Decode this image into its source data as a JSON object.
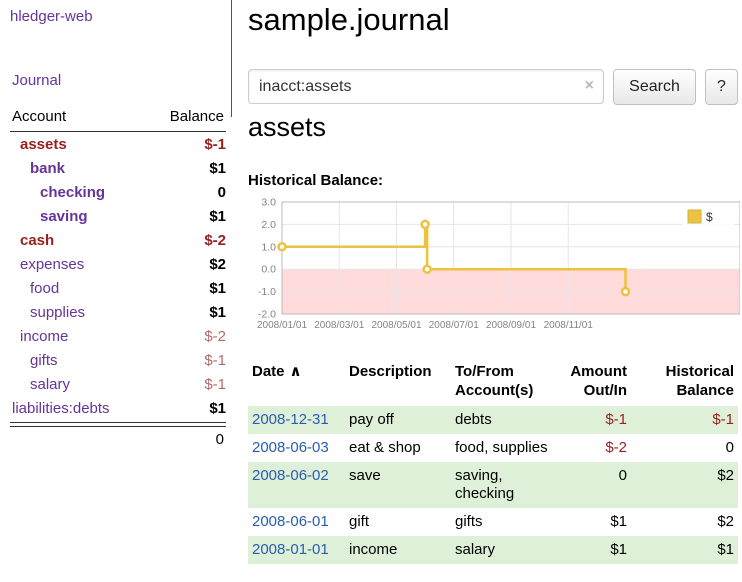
{
  "theme": {
    "link_purple": "#663399",
    "negative_dark_red": "#991f1f",
    "negative_muted_rose": "#b26b6b",
    "table_row_green": "#dff0d8",
    "date_link_blue": "#2a5db0",
    "chart_line_gold": "#edc240"
  },
  "app": {
    "brand": "hledger-web",
    "nav": {
      "journal": "Journal"
    }
  },
  "sidebar": {
    "header": {
      "account": "Account",
      "balance": "Balance"
    },
    "accounts": [
      {
        "name": "assets",
        "balance": "$-1"
      },
      {
        "name": "bank",
        "balance": "$1"
      },
      {
        "name": "checking",
        "balance": "0"
      },
      {
        "name": "saving",
        "balance": "$1"
      },
      {
        "name": "cash",
        "balance": "$-2"
      },
      {
        "name": "expenses",
        "balance": "$2"
      },
      {
        "name": "food",
        "balance": "$1"
      },
      {
        "name": "supplies",
        "balance": "$1"
      },
      {
        "name": "income",
        "balance": "$-2"
      },
      {
        "name": "gifts",
        "balance": "$-1"
      },
      {
        "name": "salary",
        "balance": "$-1"
      },
      {
        "name": "liabilities:debts",
        "balance": "$1"
      }
    ],
    "total": "0"
  },
  "main": {
    "title": "sample.journal",
    "search": {
      "value": "inacct:assets",
      "clear_icon": "×",
      "search_button": "Search",
      "help_button": "?"
    },
    "heading": "assets",
    "chart_title": "Historical Balance:"
  },
  "chart_data": {
    "type": "line",
    "step": true,
    "title": "Historical Balance",
    "legend": {
      "label": "$",
      "position": "top-right"
    },
    "colors": {
      "line": "#edc240",
      "negative_region": "#ffdbdb",
      "grid": "#e6e6e6",
      "border": "#bbbbbb",
      "tick_text": "#848484"
    },
    "ylim": [
      -2,
      3
    ],
    "xlim_months": [
      0,
      16
    ],
    "y_ticks": [
      "3.0",
      "2.0",
      "1.0",
      "0.0",
      "-1.0",
      "-2.0"
    ],
    "x_ticks": [
      {
        "m": 0,
        "label": "2008/01/01"
      },
      {
        "m": 2,
        "label": "2008/03/01"
      },
      {
        "m": 4,
        "label": "2008/05/01"
      },
      {
        "m": 6,
        "label": "2008/07/01"
      },
      {
        "m": 8,
        "label": "2008/09/01"
      },
      {
        "m": 10,
        "label": "2008/11/01"
      }
    ],
    "series": [
      {
        "name": "$",
        "points": [
          {
            "date": "2008-01-01",
            "m": 0,
            "y": 1
          },
          {
            "date": "2008-06-01",
            "m": 5.0,
            "y": 2
          },
          {
            "date": "2008-06-03",
            "m": 5.07,
            "y": 0
          },
          {
            "date": "2008-12-31",
            "m": 12.0,
            "y": -1
          }
        ]
      }
    ]
  },
  "register": {
    "columns": {
      "date": "Date",
      "sort_indicator": "∧",
      "description": "Description",
      "account": "To/From Account(s)",
      "amount": "Amount Out/In",
      "balance": "Historical Balance"
    },
    "rows": [
      {
        "date": "2008-12-31",
        "description": "pay off",
        "account": "debts",
        "amount": "$-1",
        "balance": "$-1"
      },
      {
        "date": "2008-06-03",
        "description": "eat & shop",
        "account": "food, supplies",
        "amount": "$-2",
        "balance": "0"
      },
      {
        "date": "2008-06-02",
        "description": "save",
        "account": "saving, checking",
        "amount": "0",
        "balance": "$2"
      },
      {
        "date": "2008-06-01",
        "description": "gift",
        "account": "gifts",
        "amount": "$1",
        "balance": "$2"
      },
      {
        "date": "2008-01-01",
        "description": "income",
        "account": "salary",
        "amount": "$1",
        "balance": "$1"
      }
    ]
  }
}
